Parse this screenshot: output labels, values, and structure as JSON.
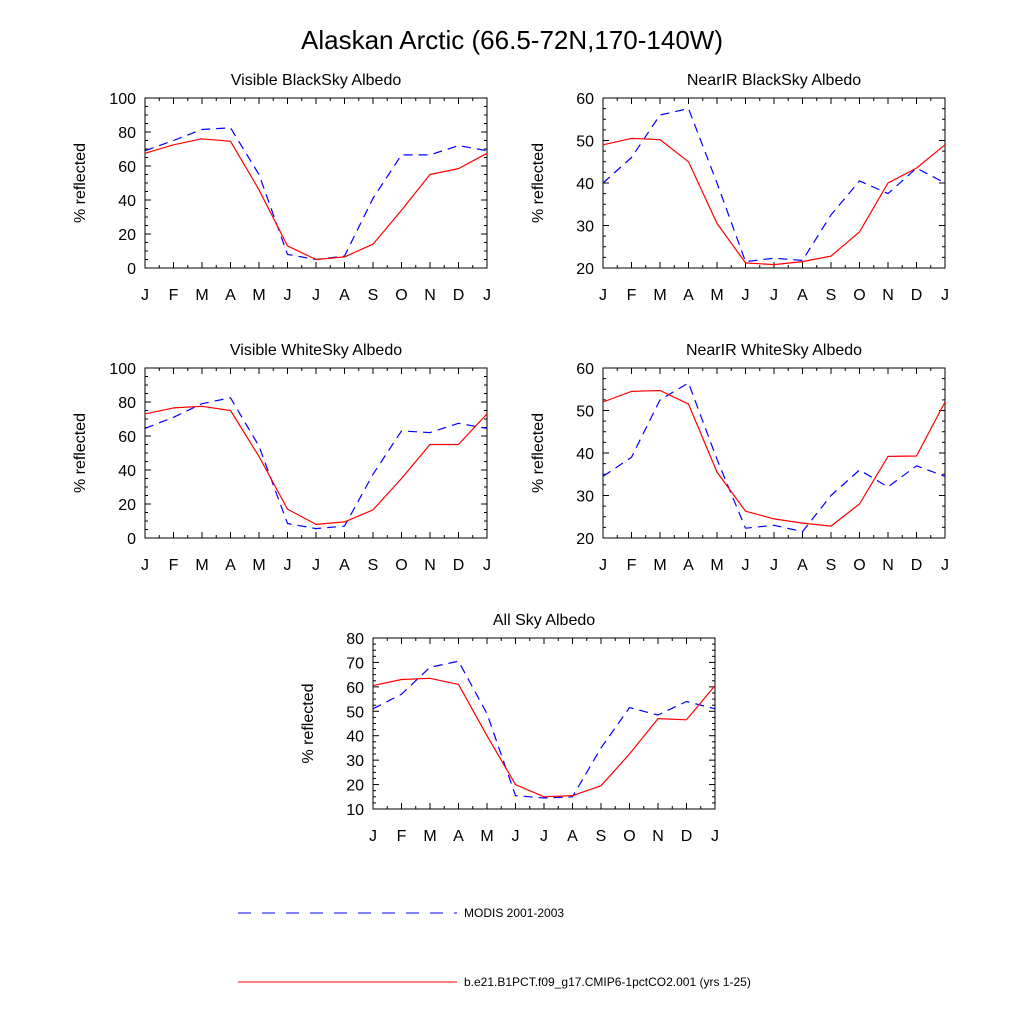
{
  "title": "Alaskan Arctic (66.5-72N,170-140W)",
  "months": [
    "J",
    "F",
    "M",
    "A",
    "M",
    "J",
    "J",
    "A",
    "S",
    "O",
    "N",
    "D",
    "J"
  ],
  "colors": {
    "modis": "#0000ff",
    "model": "#ff0000"
  },
  "legend": {
    "modis": "MODIS 2001-2003",
    "model": "b.e21.B1PCT.f09_g17.CMIP6-1pctCO2.001 (yrs 1-25)"
  },
  "chart_data": [
    {
      "type": "line",
      "title": "Visible BlackSky Albedo",
      "ylabel": "% reflected",
      "ylim": [
        0,
        100
      ],
      "yticks": [
        0,
        20,
        40,
        60,
        80,
        100
      ],
      "x": [
        "J",
        "F",
        "M",
        "A",
        "M",
        "J",
        "J",
        "A",
        "S",
        "O",
        "N",
        "D",
        "J"
      ],
      "series": [
        {
          "name": "MODIS 2001-2003",
          "values": [
            69,
            75,
            81.5,
            82.5,
            55,
            8,
            5,
            7,
            41,
            66.5,
            66.5,
            72,
            69
          ]
        },
        {
          "name": "b.e21.B1PCT.f09_g17.CMIP6-1pctCO2.001 (yrs 1-25)",
          "values": [
            67.5,
            72.5,
            76,
            74.5,
            46,
            13,
            5,
            6.5,
            14,
            34,
            55,
            58.5,
            67.5
          ]
        }
      ]
    },
    {
      "type": "line",
      "title": "NearIR BlackSky Albedo",
      "ylabel": "% reflected",
      "ylim": [
        20,
        60
      ],
      "yticks": [
        20,
        30,
        40,
        50,
        60
      ],
      "x": [
        "J",
        "F",
        "M",
        "A",
        "M",
        "J",
        "J",
        "A",
        "S",
        "O",
        "N",
        "D",
        "J"
      ],
      "series": [
        {
          "name": "MODIS 2001-2003",
          "values": [
            40,
            46,
            56,
            57.5,
            40,
            21.5,
            22.3,
            21.8,
            32.5,
            40.5,
            37.5,
            43.5,
            40
          ]
        },
        {
          "name": "b.e21.B1PCT.f09_g17.CMIP6-1pctCO2.001 (yrs 1-25)",
          "values": [
            49,
            50.5,
            50.2,
            45,
            30.5,
            21.2,
            20.8,
            21.5,
            22.8,
            28.5,
            40,
            43.5,
            49
          ]
        }
      ]
    },
    {
      "type": "line",
      "title": "Visible WhiteSky Albedo",
      "ylabel": "% reflected",
      "ylim": [
        0,
        100
      ],
      "yticks": [
        0,
        20,
        40,
        60,
        80,
        100
      ],
      "x": [
        "J",
        "F",
        "M",
        "A",
        "M",
        "J",
        "J",
        "A",
        "S",
        "O",
        "N",
        "D",
        "J"
      ],
      "series": [
        {
          "name": "MODIS 2001-2003",
          "values": [
            64.5,
            71,
            79,
            82.5,
            54,
            8.5,
            5.5,
            7,
            37.5,
            63,
            62,
            67.5,
            64.5
          ]
        },
        {
          "name": "b.e21.B1PCT.f09_g17.CMIP6-1pctCO2.001 (yrs 1-25)",
          "values": [
            73,
            76.5,
            77.5,
            75,
            48,
            17,
            8,
            9.5,
            16.5,
            35,
            55,
            55,
            73
          ]
        }
      ]
    },
    {
      "type": "line",
      "title": "NearIR WhiteSky Albedo",
      "ylabel": "% reflected",
      "ylim": [
        20,
        60
      ],
      "yticks": [
        20,
        30,
        40,
        50,
        60
      ],
      "x": [
        "J",
        "F",
        "M",
        "A",
        "M",
        "J",
        "J",
        "A",
        "S",
        "O",
        "N",
        "D",
        "J"
      ],
      "series": [
        {
          "name": "MODIS 2001-2003",
          "values": [
            34.5,
            39,
            52.5,
            56.5,
            38.5,
            22.3,
            23,
            21.5,
            30,
            36,
            32,
            37,
            34.5
          ]
        },
        {
          "name": "b.e21.B1PCT.f09_g17.CMIP6-1pctCO2.001 (yrs 1-25)",
          "values": [
            52,
            54.5,
            54.7,
            51.5,
            35.5,
            26.3,
            24.5,
            23.5,
            22.8,
            28,
            39.2,
            39.3,
            52
          ]
        }
      ]
    },
    {
      "type": "line",
      "title": "All Sky Albedo",
      "ylabel": "% reflected",
      "ylim": [
        10,
        80
      ],
      "yticks": [
        10,
        20,
        30,
        40,
        50,
        60,
        70,
        80
      ],
      "x": [
        "J",
        "F",
        "M",
        "A",
        "M",
        "J",
        "J",
        "A",
        "S",
        "O",
        "N",
        "D",
        "J"
      ],
      "series": [
        {
          "name": "MODIS 2001-2003",
          "values": [
            51,
            57,
            68,
            70.5,
            49,
            15.5,
            14.5,
            15,
            35,
            51.5,
            48.5,
            54,
            51
          ]
        },
        {
          "name": "b.e21.B1PCT.f09_g17.CMIP6-1pctCO2.001 (yrs 1-25)",
          "values": [
            60.5,
            63,
            63.5,
            61,
            40,
            20,
            15,
            15.5,
            19.5,
            32.5,
            47,
            46.5,
            60.5
          ]
        }
      ]
    }
  ]
}
